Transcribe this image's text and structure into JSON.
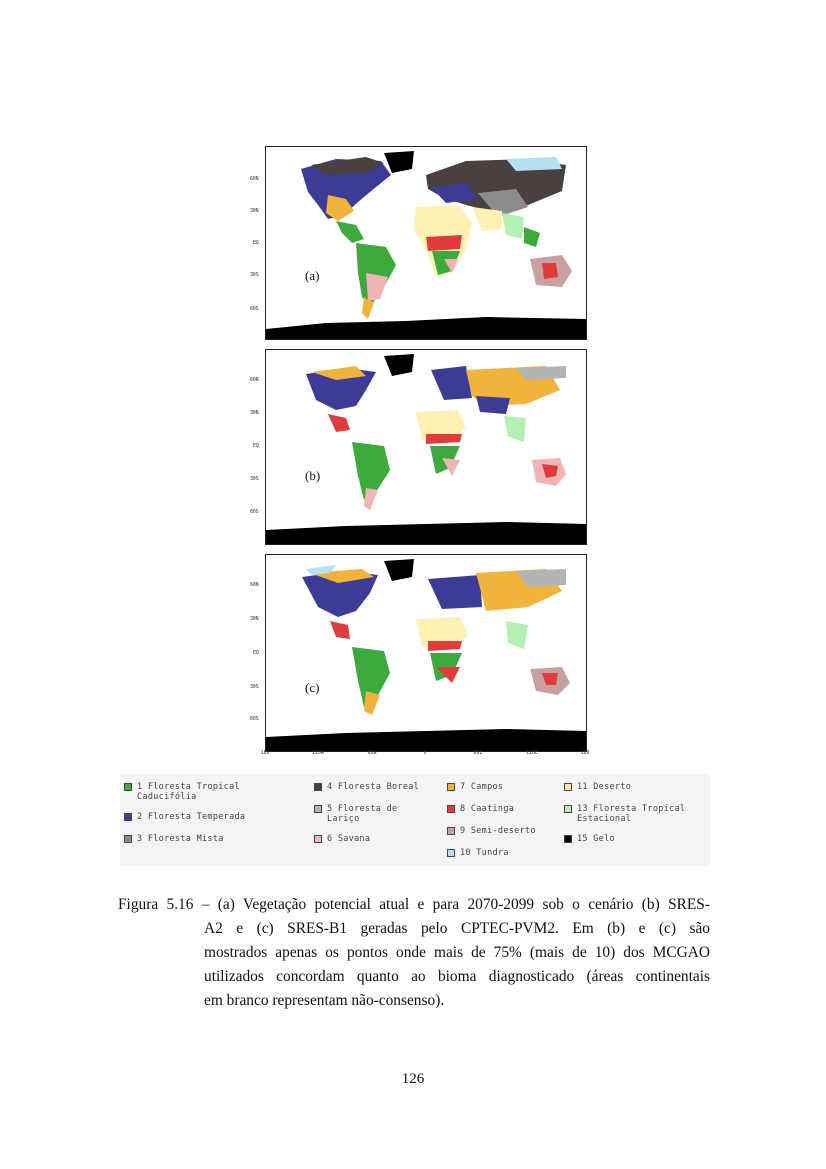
{
  "figure": {
    "panels": [
      {
        "label": "(a)",
        "latitudes": [
          "60N",
          "30N",
          "EQ",
          "30S",
          "60S"
        ]
      },
      {
        "label": "(b)",
        "latitudes": [
          "60N",
          "30N",
          "EQ",
          "30S",
          "60S"
        ]
      },
      {
        "label": "(c)",
        "latitudes": [
          "60N",
          "30N",
          "EQ",
          "30S",
          "60S"
        ]
      }
    ],
    "longitudes": [
      "180",
      "120W",
      "60W",
      "0",
      "60E",
      "120E",
      "180"
    ],
    "legend": [
      {
        "number": "1",
        "label": "1 Floresta Tropical\nCaducifólia",
        "color": "#3caa3c"
      },
      {
        "number": "2",
        "label": "2 Floresta Temperada",
        "color": "#3c3c96"
      },
      {
        "number": "3",
        "label": "3 Floresta Mista",
        "color": "#8c8c8c"
      },
      {
        "number": "4",
        "label": "4 Floresta Boreal",
        "color": "#4a4040"
      },
      {
        "number": "5",
        "label": "5 Floresta de\nLariço",
        "color": "#b4b4b4"
      },
      {
        "number": "6",
        "label": "6 Savana",
        "color": "#f0b4b4"
      },
      {
        "number": "7",
        "label": "7 Campos",
        "color": "#f0b43c"
      },
      {
        "number": "8",
        "label": "8 Caatinga",
        "color": "#e03c3c"
      },
      {
        "number": "9",
        "label": "9 Semi-deserto",
        "color": "#c8a0a0"
      },
      {
        "number": "10",
        "label": "10 Tundra",
        "color": "#b4e0f0"
      },
      {
        "number": "11",
        "label": "11 Deserto",
        "color": "#fff0b4"
      },
      {
        "number": "13",
        "label": "13 Floresta Tropical\nEstacional",
        "color": "#b4f0b4"
      },
      {
        "number": "15",
        "label": "15 Gelo",
        "color": "#000000"
      }
    ]
  },
  "caption": {
    "line1": "Figura 5.16 – (a) Vegetação potencial atual e para 2070-2099 sob o cenário (b) SRES-",
    "line2": "A2 e (c) SRES-B1 geradas pelo CPTEC-PVM2. Em (b) e (c) são",
    "line3": "mostrados apenas os pontos onde mais de 75% (mais de 10) dos MCGAO",
    "line4": "utilizados concordam quanto ao bioma diagnosticado (áreas continentais",
    "line5": "em branco representam não-consenso)."
  },
  "page_number": "126"
}
